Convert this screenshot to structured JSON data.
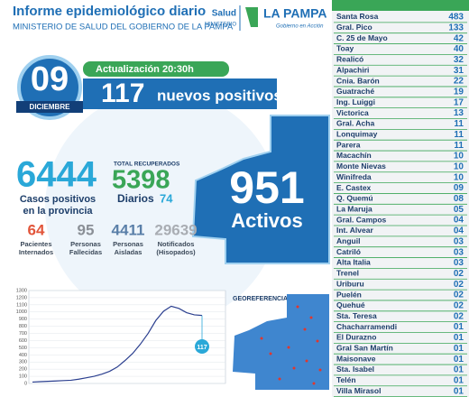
{
  "header": {
    "title": "Informe epidemiológico diario",
    "subtitle": "MINISTERIO DE SALUD DEL GOBIERNO DE LA PAMPA",
    "logo": {
      "salud": "Salud",
      "ministerio": "MINISTERIO",
      "province": "LA PAMPA",
      "tagline": "Gobierno en Acción"
    }
  },
  "date": {
    "day": "09",
    "month": "DICIEMBRE"
  },
  "update": "Actualización 20:30h",
  "new_cases": {
    "number": "117",
    "label": "nuevos positivos"
  },
  "active": {
    "number": "951",
    "label": "Activos"
  },
  "total": {
    "number": "6444",
    "label_lines": [
      "Casos positivos",
      "en la provincia"
    ]
  },
  "recovered": {
    "title": "TOTAL RECUPERADOS",
    "number": "5398",
    "daily_label": "Diarios",
    "daily": "74"
  },
  "stats": [
    {
      "number": "64",
      "label_lines": [
        "Pacientes",
        "Internados"
      ],
      "color": "#e2553a"
    },
    {
      "number": "95",
      "label_lines": [
        "Personas",
        "Fallecidas"
      ],
      "color": "#8a8f96"
    },
    {
      "number": "4411",
      "label_lines": [
        "Personas",
        "Aisladas"
      ],
      "color": "#5a7fa8"
    },
    {
      "number": "29639",
      "label_lines": [
        "Notificados",
        "(Hisopados)"
      ],
      "color": "#a9adb3"
    }
  ],
  "trend": {
    "ylim": [
      0,
      1300
    ],
    "yticks": [
      0,
      100,
      200,
      300,
      400,
      500,
      600,
      700,
      800,
      900,
      1000,
      1100,
      1200,
      1300
    ],
    "color": "#2b3f8f",
    "marker": "117",
    "values": [
      20,
      25,
      30,
      35,
      40,
      45,
      60,
      80,
      100,
      130,
      170,
      230,
      320,
      420,
      550,
      700,
      880,
      1010,
      1080,
      1050,
      990,
      960,
      951
    ]
  },
  "georef": {
    "title": "GEOREFERENCIA"
  },
  "localities": [
    {
      "name": "Santa Rosa",
      "cases": "483"
    },
    {
      "name": "Gral. Pico",
      "cases": "133"
    },
    {
      "name": "C. 25 de Mayo",
      "cases": "42"
    },
    {
      "name": "Toay",
      "cases": "40"
    },
    {
      "name": "Realicó",
      "cases": "32"
    },
    {
      "name": "Alpachiri",
      "cases": "31"
    },
    {
      "name": "Cnia. Barón",
      "cases": "22"
    },
    {
      "name": "Guatraché",
      "cases": "19"
    },
    {
      "name": "Ing. Luiggi",
      "cases": "17"
    },
    {
      "name": "Victorica",
      "cases": "13"
    },
    {
      "name": "Gral. Acha",
      "cases": "11"
    },
    {
      "name": "Lonquimay",
      "cases": "11"
    },
    {
      "name": "Parera",
      "cases": "11"
    },
    {
      "name": "Macachín",
      "cases": "10"
    },
    {
      "name": "Monte Nievas",
      "cases": "10"
    },
    {
      "name": "Winifreda",
      "cases": "10"
    },
    {
      "name": "E. Castex",
      "cases": "09"
    },
    {
      "name": "Q. Quemú",
      "cases": "08"
    },
    {
      "name": "La Maruja",
      "cases": "05"
    },
    {
      "name": "Gral. Campos",
      "cases": "04"
    },
    {
      "name": "Int. Alvear",
      "cases": "04"
    },
    {
      "name": "Anguil",
      "cases": "03"
    },
    {
      "name": "Catriló",
      "cases": "03"
    },
    {
      "name": "Alta Italia",
      "cases": "03"
    },
    {
      "name": "Trenel",
      "cases": "02"
    },
    {
      "name": "Uriburu",
      "cases": "02"
    },
    {
      "name": "Puelén",
      "cases": "02"
    },
    {
      "name": "Quehué",
      "cases": "02"
    },
    {
      "name": "Sta. Teresa",
      "cases": "02"
    },
    {
      "name": "Chacharramendi",
      "cases": "01"
    },
    {
      "name": "El Durazno",
      "cases": "01"
    },
    {
      "name": "Gral San Martín",
      "cases": "01"
    },
    {
      "name": "Maisonave",
      "cases": "01"
    },
    {
      "name": "Sta. Isabel",
      "cases": "01"
    },
    {
      "name": "Telén",
      "cases": "01"
    },
    {
      "name": "Villa Mirasol",
      "cases": "01"
    }
  ]
}
